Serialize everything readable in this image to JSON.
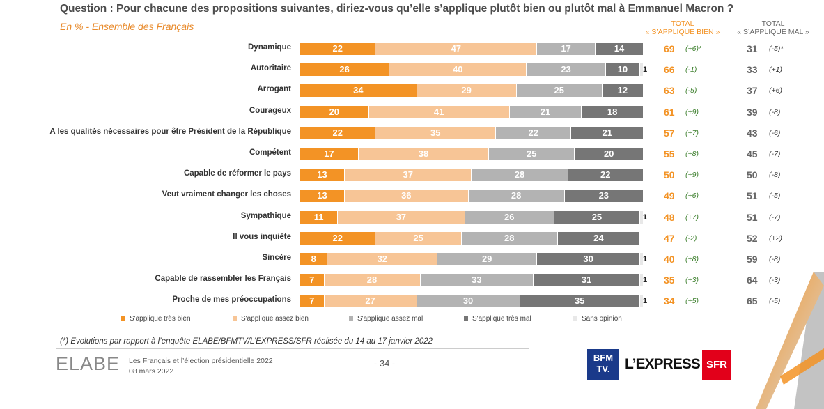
{
  "header": {
    "question_pre": "Question : Pour chacune des propositions suivantes, diriez-vous qu’elle s’applique plutôt bien ou plutôt mal à ",
    "question_name": "Emmanuel Macron",
    "question_post": " ?",
    "subtitle": "En % - Ensemble des Français",
    "col_bien_line1": "TOTAL",
    "col_bien_line2": "« S’APPLIQUE BIEN »",
    "col_mal_line1": "TOTAL",
    "col_mal_line2": "« S’APPLIQUE MAL »"
  },
  "colors": {
    "tres_bien": "#f39325",
    "assez_bien": "#f7c596",
    "assez_mal": "#b3b3b3",
    "tres_mal": "#767676",
    "sans_opinion": "#e8e8e8"
  },
  "chart_data": {
    "type": "bar",
    "orientation": "horizontal",
    "stacked": true,
    "categories": [
      "Dynamique",
      "Autoritaire",
      "Arrogant",
      "Courageux",
      "A les qualités nécessaires pour être Président de la République",
      "Compétent",
      "Capable de réformer le pays",
      "Veut vraiment changer les choses",
      "Sympathique",
      "Il vous inquiète",
      "Sincère",
      "Capable de rassembler les Français",
      "Proche de mes préoccupations"
    ],
    "series": [
      {
        "name": "S'applique très bien",
        "values": [
          22,
          26,
          34,
          20,
          22,
          17,
          13,
          13,
          11,
          22,
          8,
          7,
          7
        ]
      },
      {
        "name": "S'applique assez bien",
        "values": [
          47,
          40,
          29,
          41,
          35,
          38,
          37,
          36,
          37,
          25,
          32,
          28,
          27
        ]
      },
      {
        "name": "S'applique assez mal",
        "values": [
          17,
          23,
          25,
          21,
          22,
          25,
          28,
          28,
          26,
          28,
          29,
          33,
          30
        ]
      },
      {
        "name": "S'applique très mal",
        "values": [
          14,
          10,
          12,
          18,
          21,
          20,
          22,
          23,
          25,
          24,
          30,
          31,
          35
        ]
      },
      {
        "name": "Sans opinion",
        "values": [
          0,
          1,
          0,
          0,
          0,
          0,
          0,
          0,
          1,
          0,
          1,
          1,
          1
        ]
      }
    ],
    "total_bien": [
      69,
      66,
      63,
      61,
      57,
      55,
      50,
      49,
      48,
      47,
      40,
      35,
      34
    ],
    "evo_bien": [
      "(+6)*",
      "(-1)",
      "(-5)",
      "(+9)",
      "(+7)",
      "(+8)",
      "(+9)",
      "(+6)",
      "(+7)",
      "(-2)",
      "(+8)",
      "(+3)",
      "(+5)"
    ],
    "total_mal": [
      31,
      33,
      37,
      39,
      43,
      45,
      50,
      51,
      51,
      52,
      59,
      64,
      65
    ],
    "evo_mal": [
      "(-5)*",
      "(+1)",
      "(+6)",
      "(-8)",
      "(-6)",
      "(-7)",
      "(-8)",
      "(-5)",
      "(-7)",
      "(+2)",
      "(-8)",
      "(-3)",
      "(-5)"
    ],
    "xlim": [
      0,
      100
    ]
  },
  "footer": {
    "footnote": "(*) Evolutions par rapport à l’enquête ELABE/BFMTV/L’EXPRESS/SFR réalisée du 14 au 17 janvier 2022",
    "logo_elabe": "ELABE",
    "study_title": "Les Français et l’élection présidentielle 2022",
    "date": "08 mars 2022",
    "page": "- 34 -",
    "logo_bfm_line1": "BFM",
    "logo_bfm_line2": "TV.",
    "logo_express": "L’EXPRESS",
    "logo_sfr": "SFR"
  }
}
